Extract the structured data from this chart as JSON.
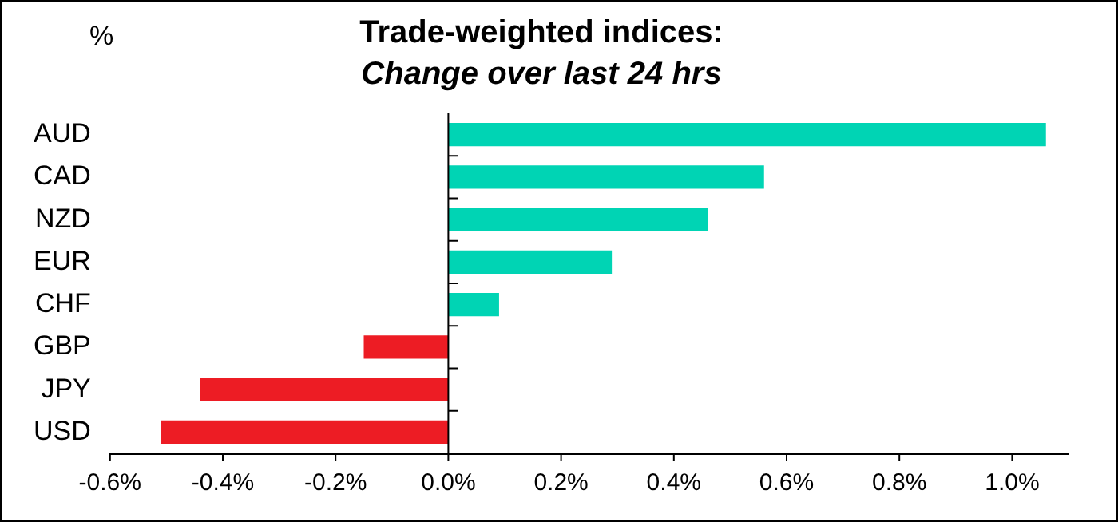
{
  "chart_data": {
    "type": "bar",
    "orientation": "horizontal",
    "title": "Trade-weighted indices:",
    "subtitle": "Change over last 24 hrs",
    "ylabel": "%",
    "categories": [
      "AUD",
      "CAD",
      "NZD",
      "EUR",
      "CHF",
      "GBP",
      "JPY",
      "USD"
    ],
    "values": [
      1.06,
      0.56,
      0.46,
      0.29,
      0.09,
      -0.15,
      -0.44,
      -0.51
    ],
    "colors": [
      "#00d4b4",
      "#00d4b4",
      "#00d4b4",
      "#00d4b4",
      "#00d4b4",
      "#ed1c24",
      "#ed1c24",
      "#ed1c24"
    ],
    "xlim": [
      -0.6,
      1.1
    ],
    "xticks": [
      {
        "value": -0.6,
        "label": "-0.6%"
      },
      {
        "value": -0.4,
        "label": "-0.4%"
      },
      {
        "value": -0.2,
        "label": "-0.2%"
      },
      {
        "value": 0,
        "label": "0.0%"
      },
      {
        "value": 0.2,
        "label": "0.2%"
      },
      {
        "value": 0.4,
        "label": "0.4%"
      },
      {
        "value": 0.6,
        "label": "0.6%"
      },
      {
        "value": 0.8,
        "label": "0.8%"
      },
      {
        "value": 1.0,
        "label": "1.0%"
      }
    ],
    "ref_lines": [
      {
        "axis": "x",
        "value": 0,
        "color": "#000000"
      }
    ],
    "grid": false,
    "legend": false
  }
}
